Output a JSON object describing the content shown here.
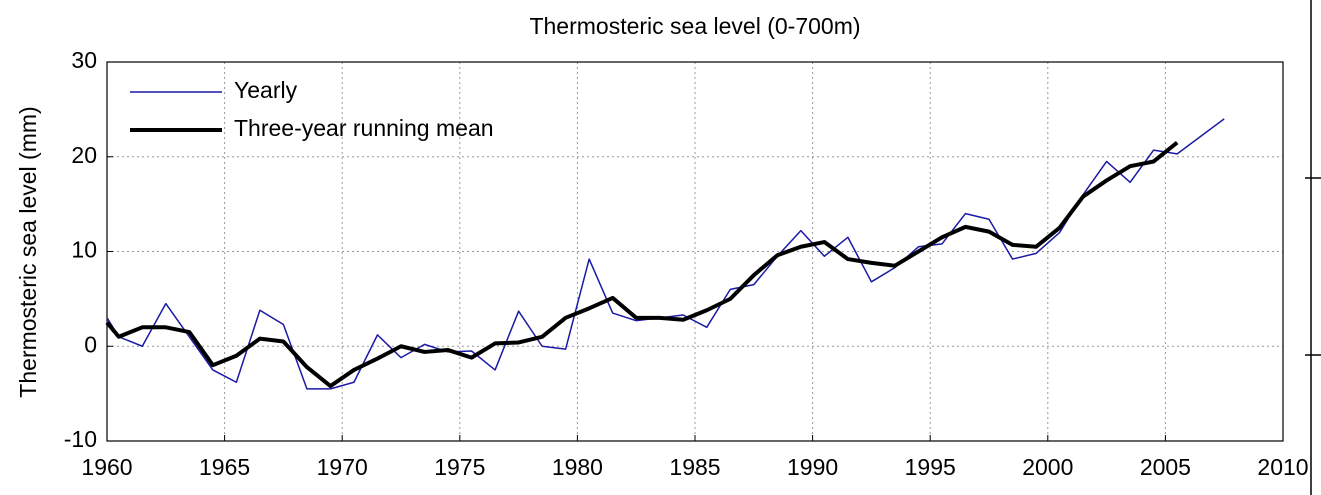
{
  "chart_data": {
    "type": "line",
    "title": "Thermosteric sea level (0-700m)",
    "y_label": "Thermosteric sea level (mm)",
    "x": [
      1960,
      1960.5,
      1961.5,
      1962.5,
      1963.5,
      1964.5,
      1965.5,
      1966.5,
      1967.5,
      1968.5,
      1969.5,
      1970.5,
      1971.5,
      1972.5,
      1973.5,
      1974.5,
      1975.5,
      1976.5,
      1977.5,
      1978.5,
      1979.5,
      1980.5,
      1981.5,
      1982.5,
      1983.5,
      1984.5,
      1985.5,
      1986.5,
      1987.5,
      1988.5,
      1989.5,
      1990.5,
      1991.5,
      1992.5,
      1993.5,
      1994.5,
      1995.5,
      1996.5,
      1997.5,
      1998.5,
      1999.5,
      2000.5,
      2001.5,
      2002.5,
      2003.5,
      2004.5,
      2005.5,
      2007.5
    ],
    "series": [
      {
        "name": "Yearly",
        "color": "#1a1aa6",
        "width": 1.5,
        "values": [
          3,
          1,
          0,
          4.5,
          1,
          -2.5,
          -3.8,
          3.8,
          2.3,
          -4.5,
          -4.5,
          -3.8,
          1.2,
          -1.2,
          0.2,
          -0.6,
          -0.5,
          -2.5,
          3.7,
          0,
          -0.3,
          9.2,
          3.5,
          2.7,
          3,
          3.3,
          2,
          6,
          6.5,
          9.5,
          12.2,
          9.5,
          11.5,
          6.8,
          8.3,
          10.5,
          10.8,
          14,
          13.4,
          9.2,
          9.8,
          12,
          16,
          19.5,
          17.3,
          20.7,
          20.3,
          24
        ]
      },
      {
        "name": "Three-year running mean",
        "color": "#000000",
        "width": 4,
        "values": [
          2.5,
          1,
          2,
          2,
          1.5,
          -2,
          -1,
          0.8,
          0.5,
          -2.2,
          -4.2,
          -2.5,
          -1.3,
          0,
          -0.6,
          -0.4,
          -1.2,
          0.3,
          0.4,
          1,
          3,
          4,
          5.1,
          3,
          3,
          2.8,
          3.8,
          5,
          7.5,
          9.6,
          10.5,
          11,
          9.2,
          8.8,
          8.5,
          10,
          11.5,
          12.6,
          12.1,
          10.7,
          10.5,
          12.5,
          15.8,
          17.5,
          19,
          19.5,
          21.5,
          null
        ]
      }
    ],
    "xlim": [
      1960,
      2010
    ],
    "xticks": [
      1960,
      1965,
      1970,
      1975,
      1980,
      1985,
      1990,
      1995,
      2000,
      2005,
      2010
    ],
    "ylim": [
      -10,
      30
    ],
    "yticks": [
      -10,
      0,
      10,
      20,
      30
    ],
    "grid": true,
    "legend": "upper left"
  }
}
